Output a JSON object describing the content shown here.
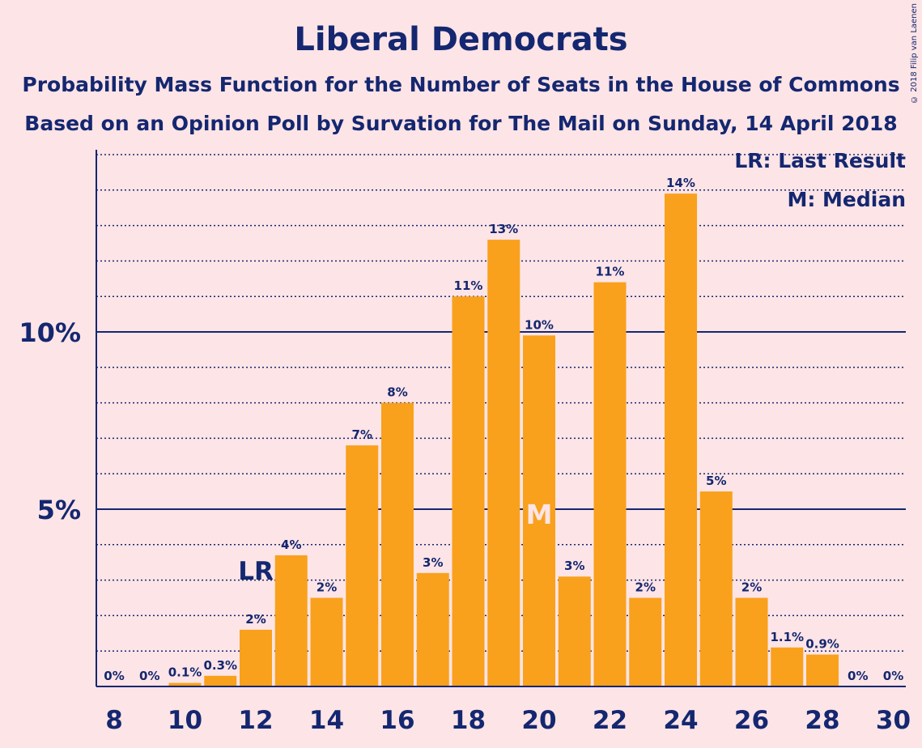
{
  "title": "Liberal Democrats",
  "subtitle": "Probability Mass Function for the Number of Seats in the House of Commons",
  "subtitle2": "Based on an Opinion Poll by Survation for The Mail on Sunday, 14 April 2018",
  "copyright": "© 2018 Filip van Laenen",
  "legend": {
    "lr": "LR: Last Result",
    "m": "M: Median"
  },
  "colors": {
    "background": "#fde4e6",
    "bar": "#f9a11c",
    "text": "#142770",
    "median_label": "#fde4e6"
  },
  "chart_data": {
    "type": "bar",
    "x": [
      8,
      9,
      10,
      11,
      12,
      13,
      14,
      15,
      16,
      17,
      18,
      19,
      20,
      21,
      22,
      23,
      24,
      25,
      26,
      27,
      28,
      29,
      30
    ],
    "values": [
      0,
      0,
      0.1,
      0.3,
      1.6,
      3.7,
      2.5,
      6.8,
      8.0,
      3.2,
      11.0,
      12.6,
      9.9,
      3.1,
      11.4,
      2.5,
      13.9,
      5.5,
      2.5,
      1.1,
      0.9,
      0,
      0
    ],
    "labels": [
      "0%",
      "0%",
      "0.1%",
      "0.3%",
      "2%",
      "4%",
      "2%",
      "7%",
      "8%",
      "3%",
      "11%",
      "13%",
      "10%",
      "3%",
      "11%",
      "2%",
      "14%",
      "5%",
      "2%",
      "1.1%",
      "0.9%",
      "0%",
      "0%"
    ],
    "x_tick_labels": [
      "8",
      "10",
      "12",
      "14",
      "16",
      "18",
      "20",
      "22",
      "24",
      "26",
      "28",
      "30"
    ],
    "x_ticks": [
      8,
      10,
      12,
      14,
      16,
      18,
      20,
      22,
      24,
      26,
      28,
      30
    ],
    "y_tick_labels": [
      "5%",
      "10%"
    ],
    "y_ticks": [
      5,
      10
    ],
    "ylim": [
      0,
      15
    ],
    "minor_grid_step": 1,
    "last_result": {
      "x": 12,
      "label": "LR"
    },
    "median": {
      "x": 20,
      "label": "M"
    },
    "grid": true,
    "legend_position": "top-right"
  }
}
